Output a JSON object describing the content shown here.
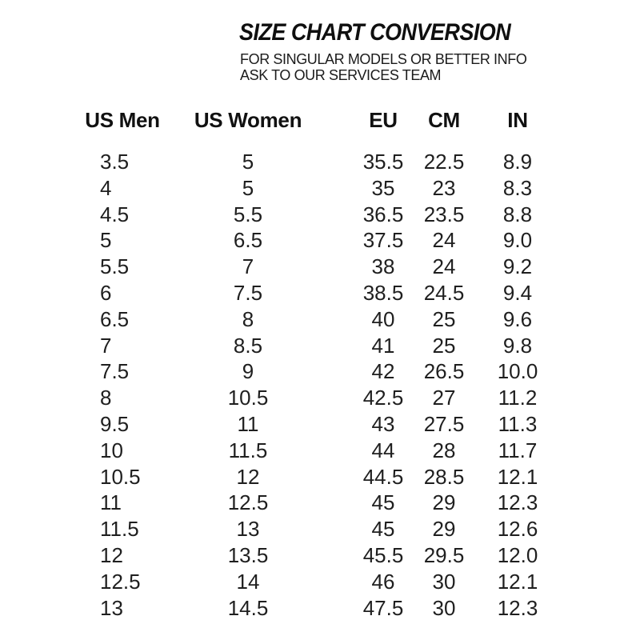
{
  "header": {
    "title": "SIZE CHART CONVERSION",
    "subtitle_line1": "FOR SINGULAR MODELS OR BETTER INFO",
    "subtitle_line2": "ASK TO OUR SERVICES TEAM"
  },
  "chart_data": {
    "type": "table",
    "title": "SIZE CHART CONVERSION",
    "columns": [
      "US Men",
      "US Women",
      "EU",
      "CM",
      "IN"
    ],
    "rows": [
      [
        "3.5",
        "5",
        "35.5",
        "22.5",
        "8.9"
      ],
      [
        "4",
        "5",
        "35",
        "23",
        "8.3"
      ],
      [
        "4.5",
        "5.5",
        "36.5",
        "23.5",
        "8.8"
      ],
      [
        "5",
        "6.5",
        "37.5",
        "24",
        "9.0"
      ],
      [
        "5.5",
        "7",
        "38",
        "24",
        "9.2"
      ],
      [
        "6",
        "7.5",
        "38.5",
        "24.5",
        "9.4"
      ],
      [
        "6.5",
        "8",
        "40",
        "25",
        "9.6"
      ],
      [
        "7",
        "8.5",
        "41",
        "25",
        "9.8"
      ],
      [
        "7.5",
        "9",
        "42",
        "26.5",
        "10.0"
      ],
      [
        "8",
        "10.5",
        "42.5",
        "27",
        "11.2"
      ],
      [
        "9.5",
        "11",
        "43",
        "27.5",
        "11.3"
      ],
      [
        "10",
        "11.5",
        "44",
        "28",
        "11.7"
      ],
      [
        "10.5",
        "12",
        "44.5",
        "28.5",
        "12.1"
      ],
      [
        "11",
        "12.5",
        "45",
        "29",
        "12.3"
      ],
      [
        "11.5",
        "13",
        "45",
        "29",
        "12.6"
      ],
      [
        "12",
        "13.5",
        "45.5",
        "29.5",
        "12.0"
      ],
      [
        "12.5",
        "14",
        "46",
        "30",
        "12.1"
      ],
      [
        "13",
        "14.5",
        "47.5",
        "30",
        "12.3"
      ]
    ]
  },
  "colors": {
    "background": "#ffffff",
    "title_text": "#0f0f0f",
    "table_text": "#1f1f1f"
  }
}
